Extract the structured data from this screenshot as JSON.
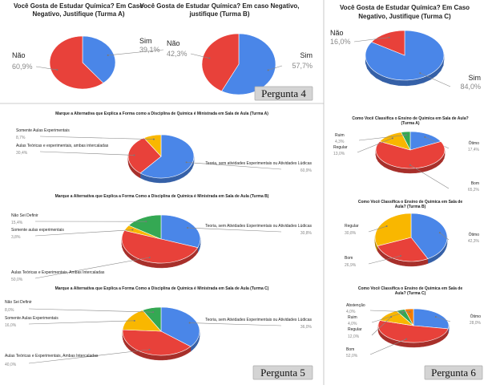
{
  "colors": {
    "blue": "#4a86e8",
    "red": "#e8413a",
    "yellow": "#f9b700",
    "green": "#34a853",
    "orange": "#f57c00",
    "teal": "#23a0a4"
  },
  "tags": {
    "p4": "Pergunta  4",
    "p5": "Pergunta  5",
    "p6": "Pergunta  6"
  },
  "chart_data": [
    {
      "id": "q4a",
      "type": "pie",
      "title": [
        "Você Gosta de Estudar Química? Em Caso",
        "Negativo, Justifique (Turma A)"
      ],
      "slices": [
        {
          "label": "Sim",
          "value": 39.1,
          "value_text": "39,1%",
          "color": "blue"
        },
        {
          "label": "Não",
          "value": 60.9,
          "value_text": "60,9%",
          "color": "red"
        }
      ]
    },
    {
      "id": "q4b",
      "type": "pie",
      "title": [
        "Você Gosta de Estudar Química? Em caso Negativo,",
        "justifique (Turma B)"
      ],
      "slices": [
        {
          "label": "Sim",
          "value": 57.7,
          "value_text": "57,7%",
          "color": "blue"
        },
        {
          "label": "Não",
          "value": 42.3,
          "value_text": "42,3%",
          "color": "red"
        }
      ]
    },
    {
      "id": "q4c",
      "type": "pie",
      "title": [
        "Você Gosta de Estudar Química? Em Caso",
        "Negativo, Justifique (Turma C)"
      ],
      "slices": [
        {
          "label": "Sim",
          "value": 84.0,
          "value_text": "84,0%",
          "color": "blue"
        },
        {
          "label": "Não",
          "value": 16.0,
          "value_text": "16,0%",
          "color": "red"
        }
      ]
    },
    {
      "id": "q5a",
      "type": "pie",
      "title": [
        "Marque a Alternativa que Explica a Forma como a Disciplina de Química é Ministrada em Sala de Aula (Turma A)"
      ],
      "slices": [
        {
          "label": "Teoria, sem atividades Experimentais ou Atividades Lúdicas",
          "value": 60.9,
          "value_text": "60,9%",
          "color": "blue"
        },
        {
          "label": "Aulas Teóricas e experimentais, ambas intercaladas",
          "value": 30.4,
          "value_text": "30,4%",
          "color": "red"
        },
        {
          "label": "Somente Aulas Experimentais",
          "value": 8.7,
          "value_text": "8,7%",
          "color": "yellow"
        }
      ]
    },
    {
      "id": "q5b",
      "type": "pie",
      "title": [
        "Marque a Alternativa que Explica a Forma Como a Disciplina de Química é Ministrada em Sala de Aula (Turma B)"
      ],
      "slices": [
        {
          "label": "Teoria, sem Atividades Experimentais ou Atividades Lúdicas",
          "value": 30.8,
          "value_text": "30,8%",
          "color": "blue"
        },
        {
          "label": "Aulas Teóricas e Experimentais, Ambas Intercaladas",
          "value": 50.0,
          "value_text": "50,0%",
          "color": "red"
        },
        {
          "label": "Somente aulas experimentais",
          "value": 3.8,
          "value_text": "3,8%",
          "color": "yellow"
        },
        {
          "label": "Não Sei Definir",
          "value": 15.4,
          "value_text": "15,4%",
          "color": "green"
        }
      ]
    },
    {
      "id": "q5c",
      "type": "pie",
      "title": [
        "Marque a Alternativa que Explica a Forma Como a Disciplina de Química é Ministrada em Sala de Aula (Turma C)"
      ],
      "slices": [
        {
          "label": "Teoria, sem Atividades Experimentais ou Atividades Lúdicas",
          "value": 36.0,
          "value_text": "36,0%",
          "color": "blue"
        },
        {
          "label": "Aulas Teóricas e Experimentais, Ambas Intercaladas",
          "value": 40.0,
          "value_text": "40,0%",
          "color": "red"
        },
        {
          "label": "Somente Aulas Experimentais",
          "value": 16.0,
          "value_text": "16,0%",
          "color": "yellow"
        },
        {
          "label": "Não Sei Definir",
          "value": 8.0,
          "value_text": "8,0%",
          "color": "green"
        }
      ]
    },
    {
      "id": "q6a",
      "type": "pie",
      "title": [
        "Como Você Classifica o Ensino de Química em Sala de Aula?",
        "(Turma A)"
      ],
      "slices": [
        {
          "label": "Ótimo",
          "value": 17.4,
          "value_text": "17,4%",
          "color": "blue"
        },
        {
          "label": "Bom",
          "value": 65.2,
          "value_text": "65,2%",
          "color": "red"
        },
        {
          "label": "Regular",
          "value": 13.0,
          "value_text": "13,0%",
          "color": "yellow"
        },
        {
          "label": "Ruim",
          "value": 4.3,
          "value_text": "4,3%",
          "color": "green"
        }
      ]
    },
    {
      "id": "q6b",
      "type": "pie",
      "title": [
        "Como Você Classifica o Ensino de Química em Sala de",
        "Aula? (Turma B)"
      ],
      "slices": [
        {
          "label": "Ótimo",
          "value": 42.3,
          "value_text": "42,3%",
          "color": "blue"
        },
        {
          "label": "Bom",
          "value": 26.9,
          "value_text": "26,9%",
          "color": "red"
        },
        {
          "label": "Regular",
          "value": 30.8,
          "value_text": "30,8%",
          "color": "yellow"
        }
      ]
    },
    {
      "id": "q6c",
      "type": "pie",
      "title": [
        "Como Você Classifica o Ensino de Química em Sala de",
        "Aula? (Turma C)"
      ],
      "slices": [
        {
          "label": "Ótimo",
          "value": 28.0,
          "value_text": "28,0%",
          "color": "blue"
        },
        {
          "label": "Bom",
          "value": 52.0,
          "value_text": "52,0%",
          "color": "red"
        },
        {
          "label": "Regular",
          "value": 12.0,
          "value_text": "12,0%",
          "color": "yellow"
        },
        {
          "label": "Ruim",
          "value": 4.0,
          "value_text": "4,0%",
          "color": "green"
        },
        {
          "label": "Abstenção",
          "value": 4.0,
          "value_text": "4,0%",
          "color": "orange"
        }
      ]
    }
  ]
}
